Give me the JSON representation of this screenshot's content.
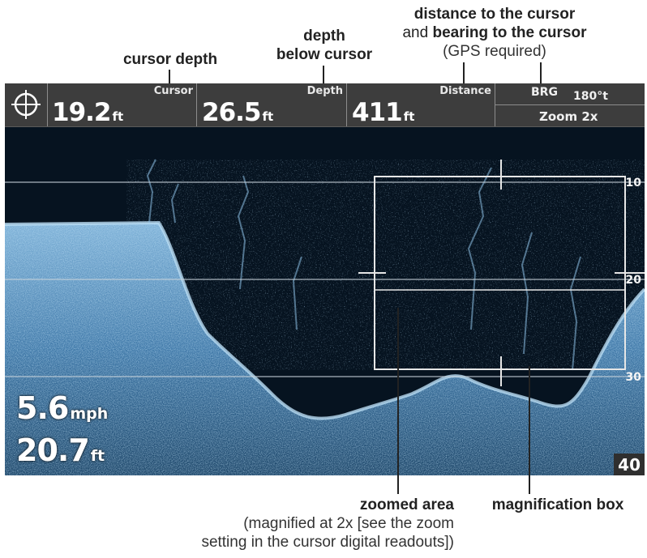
{
  "callouts": {
    "cursor_depth": "cursor depth",
    "depth_line1": "depth",
    "depth_line2": "below cursor",
    "distance_line1": "distance to the cursor",
    "distance_and": "and",
    "distance_bearing": "bearing to the cursor",
    "distance_note": "(GPS required)",
    "zoomed_area": "zoomed area",
    "zoomed_note1": "(magnified at 2x [see the zoom",
    "zoomed_note2": "setting in the cursor digital readouts])",
    "magnification_box": "magnification box"
  },
  "readouts": {
    "cursor": {
      "label": "Cursor",
      "value": "19.2",
      "unit": "ft"
    },
    "depth": {
      "label": "Depth",
      "value": "26.5",
      "unit": "ft"
    },
    "distance": {
      "label": "Distance",
      "value": "411",
      "unit": "ft"
    },
    "brg": {
      "label": "BRG",
      "value": "180°t"
    },
    "zoom": "Zoom 2x"
  },
  "overlay": {
    "speed": {
      "value": "5.6",
      "unit": "mph"
    },
    "depth": {
      "value": "20.7",
      "unit": "ft"
    }
  },
  "depth_scale": [
    "10",
    "20",
    "30",
    "40"
  ],
  "icons": {
    "cursor": "crosshair-target-icon"
  },
  "colors": {
    "water": "#061320",
    "sonar_return": "#8fc3e8",
    "bar": "#3d3d3d"
  }
}
